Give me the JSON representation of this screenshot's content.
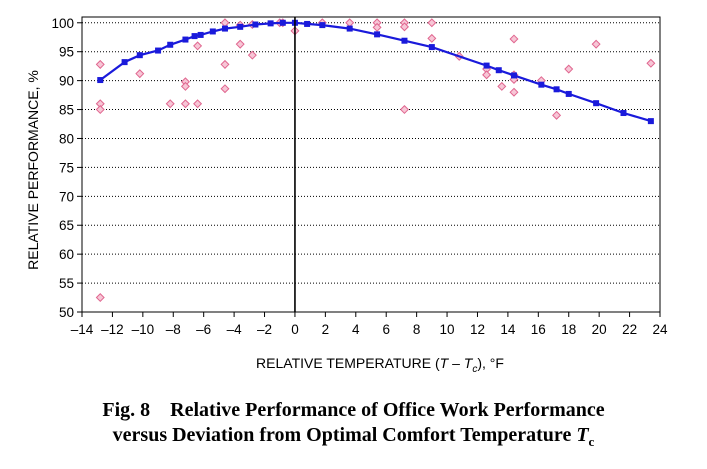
{
  "caption": {
    "line1": "Fig. 8    Relative Performance of Office Work Performance",
    "line2_prefix": "versus Deviation from Optimal Comfort Temperature ",
    "line2_symbol": "T",
    "line2_sub": "c"
  },
  "chart_data": {
    "type": "scatter",
    "title": "",
    "xlabel": {
      "prefix": "RELATIVE TEMPERATURE (",
      "var1": "T",
      "dash": " – ",
      "var2": "T",
      "sub": "c",
      "suffix": "), °F"
    },
    "ylabel": "RELATIVE PERFORMANCE, %",
    "xlim": [
      -14,
      24
    ],
    "ylim": [
      50,
      101
    ],
    "xticks": [
      -14,
      -12,
      -10,
      -8,
      -6,
      -4,
      -2,
      0,
      2,
      4,
      6,
      8,
      10,
      12,
      14,
      16,
      18,
      20,
      22,
      24
    ],
    "xtick_labels": [
      "–14",
      "–12",
      "–10",
      "–8",
      "–6",
      "–4",
      "–2",
      "0",
      "2",
      "4",
      "6",
      "8",
      "10",
      "12",
      "14",
      "16",
      "18",
      "20",
      "22",
      "24"
    ],
    "yticks": [
      50,
      55,
      60,
      65,
      70,
      75,
      80,
      85,
      90,
      95,
      100
    ],
    "grid": true,
    "series": [
      {
        "kind": "line",
        "color": "#1a1adb",
        "x": [
          -12.8,
          -11.2,
          -10.2,
          -9.0,
          -8.2,
          -7.2,
          -6.6,
          -6.2,
          -5.4,
          -4.6,
          -3.6,
          -2.6,
          -1.6,
          -0.8,
          0.0,
          0.8,
          1.8,
          3.6,
          5.4,
          7.2,
          9.0,
          12.6,
          13.4,
          14.4,
          16.2,
          17.2,
          18.0,
          19.8,
          21.6,
          23.4
        ],
        "y": [
          90.1,
          93.2,
          94.4,
          95.2,
          96.2,
          97.1,
          97.7,
          97.9,
          98.5,
          99.0,
          99.3,
          99.7,
          99.9,
          100.0,
          100.0,
          99.8,
          99.6,
          99.0,
          98.0,
          96.9,
          95.8,
          92.6,
          91.8,
          90.9,
          89.3,
          88.5,
          87.7,
          86.1,
          84.4,
          83.0
        ]
      },
      {
        "kind": "scatter",
        "color": "#e0668f",
        "fill": "#f7c6d6",
        "x": [
          -12.8,
          -12.8,
          -12.8,
          -12.8,
          -10.2,
          -8.2,
          -7.2,
          -7.2,
          -7.2,
          -6.4,
          -6.4,
          -4.6,
          -4.6,
          -4.6,
          -3.6,
          -3.6,
          -2.8,
          -2.8,
          -1.0,
          -0.8,
          0.0,
          1.8,
          3.6,
          5.4,
          5.4,
          7.2,
          7.2,
          7.2,
          9.0,
          9.0,
          10.8,
          12.6,
          12.6,
          13.6,
          14.4,
          14.4,
          14.4,
          14.4,
          16.2,
          17.2,
          18.0,
          19.8,
          23.4
        ],
        "y": [
          92.8,
          86.0,
          85.0,
          52.5,
          91.2,
          86.0,
          89.8,
          89.0,
          86.0,
          96.0,
          86.0,
          100.0,
          92.8,
          88.6,
          99.6,
          96.3,
          99.7,
          94.4,
          100.0,
          100.0,
          98.6,
          100.0,
          100.0,
          100.0,
          99.2,
          100.0,
          99.3,
          85.0,
          100.0,
          97.3,
          94.2,
          92.0,
          91.0,
          89.0,
          97.2,
          91.0,
          90.2,
          88.0,
          90.0,
          84.0,
          92.0,
          96.3,
          93.0
        ]
      }
    ]
  }
}
